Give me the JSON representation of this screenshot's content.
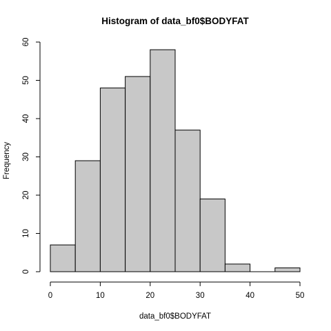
{
  "chart_data": {
    "type": "bar",
    "title": "Histogram of data_bf0$BODYFAT",
    "xlabel": "data_bf0$BODYFAT",
    "ylabel": "Frequency",
    "bins": [
      {
        "start": 0,
        "end": 5,
        "count": 7
      },
      {
        "start": 5,
        "end": 10,
        "count": 29
      },
      {
        "start": 10,
        "end": 15,
        "count": 48
      },
      {
        "start": 15,
        "end": 20,
        "count": 51
      },
      {
        "start": 20,
        "end": 25,
        "count": 58
      },
      {
        "start": 25,
        "end": 30,
        "count": 37
      },
      {
        "start": 30,
        "end": 35,
        "count": 19
      },
      {
        "start": 35,
        "end": 40,
        "count": 2
      },
      {
        "start": 40,
        "end": 45,
        "count": 0
      },
      {
        "start": 45,
        "end": 50,
        "count": 1
      }
    ],
    "xlim": [
      0,
      50
    ],
    "ylim": [
      0,
      60
    ],
    "x_ticks": [
      "0",
      "10",
      "20",
      "30",
      "40",
      "50"
    ],
    "y_ticks": [
      "0",
      "10",
      "20",
      "30",
      "40",
      "50",
      "60"
    ],
    "bar_fill": "#c8c8c8",
    "bar_stroke": "#000000",
    "grid": false
  }
}
